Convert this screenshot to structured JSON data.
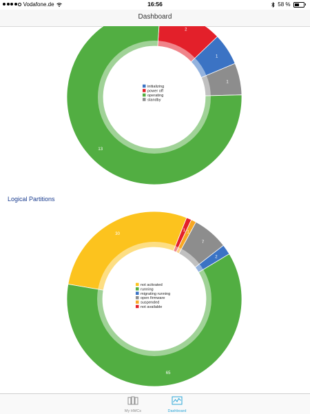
{
  "status_bar": {
    "carrier": "Vodafone.de",
    "time": "16:56",
    "battery": "58 %",
    "battery_level": 0.58
  },
  "nav": {
    "title": "Dashboard"
  },
  "section_title": "Logical Partitions",
  "chart_data": [
    {
      "type": "pie",
      "categories": [
        "initializing",
        "power off",
        "operating",
        "standby"
      ],
      "values": [
        1,
        2,
        13,
        1
      ],
      "colors": [
        "#3b73c4",
        "#e3202a",
        "#52ae42",
        "#8d8d8d"
      ],
      "slice_order": [
        "standby",
        "initializing",
        "power off",
        "operating"
      ],
      "legend_placement": "center"
    },
    {
      "type": "pie",
      "categories": [
        "not activated",
        "running",
        "migrating running",
        "open firmware",
        "suspended",
        "not available"
      ],
      "values": [
        30,
        65,
        2,
        7,
        1,
        1
      ],
      "colors": [
        "#fcc31e",
        "#52ae42",
        "#3b73c4",
        "#8d8d8d",
        "#f7a823",
        "#e3202a"
      ],
      "slice_order": [
        "migrating running",
        "open firmware",
        "suspended",
        "not available",
        "not activated",
        "running"
      ],
      "legend_placement": "center"
    }
  ],
  "tab_bar": {
    "items": [
      {
        "label": "My HMCs",
        "icon": "server-icon"
      },
      {
        "label": "Dashboard",
        "icon": "chart-icon"
      }
    ]
  }
}
